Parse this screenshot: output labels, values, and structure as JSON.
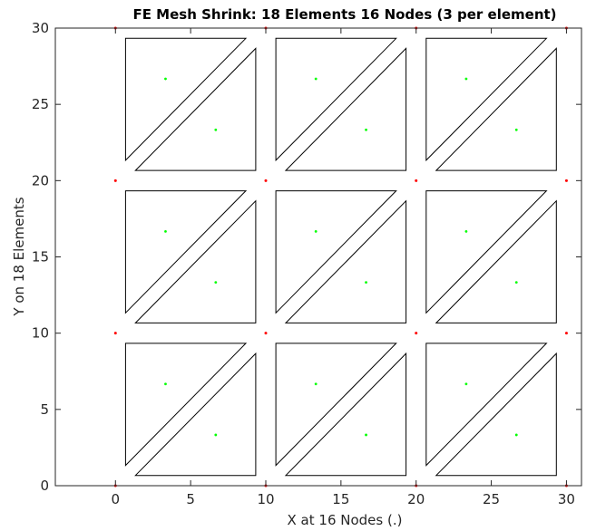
{
  "chart_data": {
    "type": "scatter",
    "title": "FE Mesh Shrink: 18 Elements 16 Nodes (3 per element)",
    "xlabel": "X at 16 Nodes (.)",
    "ylabel": "Y on 18 Elements",
    "xlim": [
      -4,
      31
    ],
    "ylim": [
      0,
      30
    ],
    "xticks": [
      0,
      5,
      10,
      15,
      20,
      25,
      30
    ],
    "yticks": [
      0,
      5,
      10,
      15,
      20,
      25,
      30
    ],
    "grid": false,
    "colors": {
      "nodes": "#ff0000",
      "centroids": "#00ff00",
      "elements": "#000000",
      "axes": "#262626"
    },
    "nodes": [
      [
        0,
        0
      ],
      [
        10,
        0
      ],
      [
        20,
        0
      ],
      [
        30,
        0
      ],
      [
        0,
        10
      ],
      [
        10,
        10
      ],
      [
        20,
        10
      ],
      [
        30,
        10
      ],
      [
        0,
        20
      ],
      [
        10,
        20
      ],
      [
        20,
        20
      ],
      [
        30,
        20
      ],
      [
        0,
        30
      ],
      [
        10,
        30
      ],
      [
        20,
        30
      ],
      [
        30,
        30
      ]
    ],
    "centroids": [
      [
        3.33,
        6.67
      ],
      [
        6.67,
        3.33
      ],
      [
        13.33,
        6.67
      ],
      [
        16.67,
        3.33
      ],
      [
        23.33,
        6.67
      ],
      [
        26.67,
        3.33
      ],
      [
        3.33,
        16.67
      ],
      [
        6.67,
        13.33
      ],
      [
        13.33,
        16.67
      ],
      [
        16.67,
        13.33
      ],
      [
        23.33,
        16.67
      ],
      [
        26.67,
        13.33
      ],
      [
        3.33,
        26.67
      ],
      [
        6.67,
        23.33
      ],
      [
        13.33,
        26.67
      ],
      [
        16.67,
        23.33
      ],
      [
        23.33,
        26.67
      ],
      [
        26.67,
        23.33
      ]
    ],
    "shrink_factor": 0.8,
    "elements": [
      [
        [
          0.67,
          1.33
        ],
        [
          8.67,
          9.33
        ],
        [
          0.67,
          9.33
        ]
      ],
      [
        [
          1.33,
          0.67
        ],
        [
          9.33,
          0.67
        ],
        [
          9.33,
          8.67
        ]
      ],
      [
        [
          10.67,
          1.33
        ],
        [
          18.67,
          9.33
        ],
        [
          10.67,
          9.33
        ]
      ],
      [
        [
          11.33,
          0.67
        ],
        [
          19.33,
          0.67
        ],
        [
          19.33,
          8.67
        ]
      ],
      [
        [
          20.67,
          1.33
        ],
        [
          28.67,
          9.33
        ],
        [
          20.67,
          9.33
        ]
      ],
      [
        [
          21.33,
          0.67
        ],
        [
          29.33,
          0.67
        ],
        [
          29.33,
          8.67
        ]
      ],
      [
        [
          0.67,
          11.33
        ],
        [
          8.67,
          19.33
        ],
        [
          0.67,
          19.33
        ]
      ],
      [
        [
          1.33,
          10.67
        ],
        [
          9.33,
          10.67
        ],
        [
          9.33,
          18.67
        ]
      ],
      [
        [
          10.67,
          11.33
        ],
        [
          18.67,
          19.33
        ],
        [
          10.67,
          19.33
        ]
      ],
      [
        [
          11.33,
          10.67
        ],
        [
          19.33,
          10.67
        ],
        [
          19.33,
          18.67
        ]
      ],
      [
        [
          20.67,
          11.33
        ],
        [
          28.67,
          19.33
        ],
        [
          20.67,
          19.33
        ]
      ],
      [
        [
          21.33,
          10.67
        ],
        [
          29.33,
          10.67
        ],
        [
          29.33,
          18.67
        ]
      ],
      [
        [
          0.67,
          21.33
        ],
        [
          8.67,
          29.33
        ],
        [
          0.67,
          29.33
        ]
      ],
      [
        [
          1.33,
          20.67
        ],
        [
          9.33,
          20.67
        ],
        [
          9.33,
          28.67
        ]
      ],
      [
        [
          10.67,
          21.33
        ],
        [
          18.67,
          29.33
        ],
        [
          10.67,
          29.33
        ]
      ],
      [
        [
          11.33,
          20.67
        ],
        [
          19.33,
          20.67
        ],
        [
          19.33,
          28.67
        ]
      ],
      [
        [
          20.67,
          21.33
        ],
        [
          28.67,
          29.33
        ],
        [
          20.67,
          29.33
        ]
      ],
      [
        [
          21.33,
          20.67
        ],
        [
          29.33,
          20.67
        ],
        [
          29.33,
          28.67
        ]
      ]
    ]
  }
}
